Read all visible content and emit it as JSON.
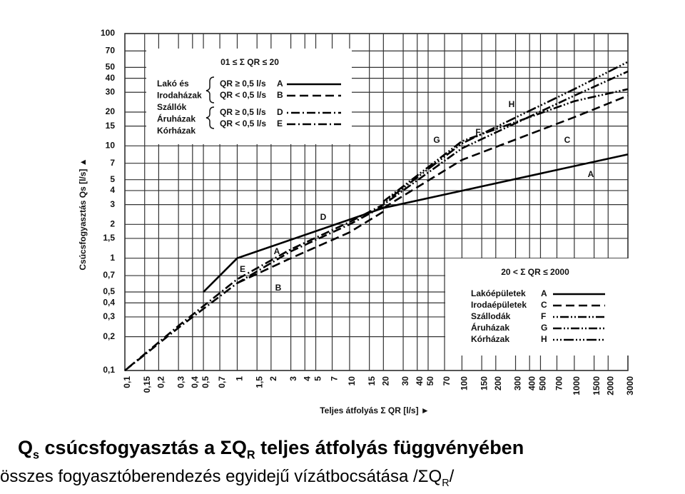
{
  "chart_data": {
    "type": "line",
    "y_axis_label": "Csúcsfogyasztás Qs [l/s] ▲",
    "x_axis_label": "Teljes átfolyás  Σ QR [l/s] ►",
    "log_x": true,
    "log_y": true,
    "grid": true,
    "xlim": [
      0.1,
      3000
    ],
    "ylim": [
      0.1,
      100
    ],
    "xticks": [
      {
        "value": 0.1,
        "label": "0,1"
      },
      {
        "value": 0.15,
        "label": "0,15"
      },
      {
        "value": 0.2,
        "label": "0,2"
      },
      {
        "value": 0.3,
        "label": "0,3"
      },
      {
        "value": 0.4,
        "label": "0,4"
      },
      {
        "value": 0.5,
        "label": "0,5"
      },
      {
        "value": 0.7,
        "label": "0,7"
      },
      1,
      {
        "value": 1.5,
        "label": "1,5"
      },
      2,
      3,
      4,
      5,
      7,
      10,
      15,
      20,
      30,
      40,
      50,
      70,
      100,
      150,
      200,
      300,
      400,
      500,
      700,
      1000,
      1500,
      2000,
      3000
    ],
    "yticks": [
      {
        "value": 0.1,
        "label": "0,1"
      },
      {
        "value": 0.2,
        "label": "0,2"
      },
      {
        "value": 0.3,
        "label": "0,3"
      },
      {
        "value": 0.4,
        "label": "0,4"
      },
      {
        "value": 0.5,
        "label": "0,5"
      },
      {
        "value": 0.7,
        "label": "0,7"
      },
      1,
      {
        "value": 1.5,
        "label": "1,5"
      },
      2,
      3,
      4,
      5,
      7,
      10,
      15,
      20,
      30,
      40,
      50,
      70,
      100
    ],
    "series": [
      {
        "name": "A",
        "color": "#000000",
        "style": "solid",
        "x": [
          0.5,
          1,
          20,
          3000
        ],
        "values": [
          0.5,
          1,
          2.8,
          8.4
        ]
      },
      {
        "name": "B",
        "color": "#000000",
        "style": "dashed",
        "x": [
          1,
          3,
          10,
          20
        ],
        "values": [
          0.6,
          1.0,
          1.7,
          2.6
        ]
      },
      {
        "name": "D",
        "color": "#000000",
        "style": "dotdash",
        "x": [
          0.1,
          0.3,
          1,
          3,
          10,
          20
        ],
        "values": [
          0.1,
          0.25,
          0.65,
          1.2,
          2.1,
          3
        ]
      },
      {
        "name": "E",
        "color": "#000000",
        "style": "dashdot",
        "x": [
          0.1,
          0.3,
          1,
          3,
          10,
          20
        ],
        "values": [
          0.1,
          0.24,
          0.6,
          1.15,
          2,
          2.9
        ]
      },
      {
        "name": "C",
        "color": "#000000",
        "style": "dashed",
        "x": [
          20,
          100,
          1000,
          3000
        ],
        "values": [
          2.8,
          7.5,
          18,
          28
        ]
      },
      {
        "name": "F",
        "color": "#000000",
        "style": "dotdotdash",
        "x": [
          20,
          100,
          1000,
          3000
        ],
        "values": [
          3.0,
          9.5,
          28,
          46
        ]
      },
      {
        "name": "G",
        "color": "#000000",
        "style": "dashdotdot",
        "x": [
          20,
          100,
          1000,
          3000
        ],
        "values": [
          3.2,
          11,
          25,
          32
        ]
      },
      {
        "name": "H",
        "color": "#000000",
        "style": "dotsdash",
        "x": [
          20,
          100,
          1000,
          3000
        ],
        "values": [
          3.1,
          10.5,
          32,
          56
        ]
      }
    ],
    "legend_small": {
      "title": "01 ≤ Σ QR ≤ 20",
      "groups": [
        "Lakó és",
        "Irodaházak",
        "Szállók",
        "Áruházak",
        "Kórházak"
      ],
      "conditions": [
        "QR ≥ 0,5 l/s",
        "QR < 0,5 l/s",
        "QR ≥ 0,5 l/s",
        "QR < 0,5 l/s"
      ]
    },
    "legend_large": {
      "title": "20 < Σ QR ≤ 2000",
      "names": [
        "Lakóépületek",
        "Irodaépületek",
        "Szállodák",
        "Áruházak",
        "Kórházak"
      ]
    }
  },
  "caption": {
    "line1": [
      "Q",
      "s",
      " csúcsfogyasztás a ΣQ",
      "R",
      " teljes átfolyás függvényében"
    ],
    "line2": [
      "összes fogyasztóberendezés egyidejű vízátbocsátása /ΣQ",
      "R",
      "/"
    ]
  }
}
